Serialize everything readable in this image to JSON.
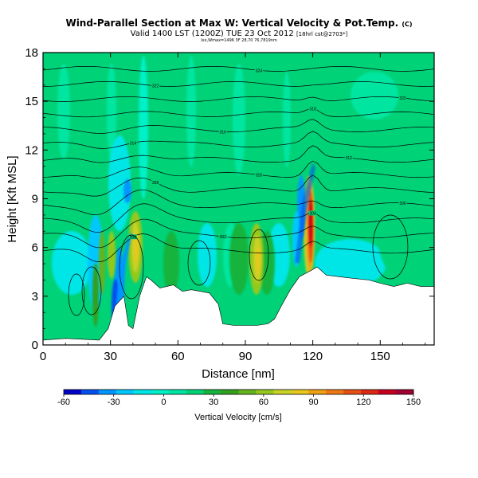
{
  "header": {
    "title": "Wind-Parallel Section at Max W: Vertical Velocity & Pot.Temp.",
    "copyright": "(C)",
    "subtitle": "Valid 1400 LST (1200Z) TUE 23 Oct 2012",
    "subtitle_note": "[18hrl cst@2703*]",
    "fineprint": "Ixx,Wmax=1496 3F 28,70 76,7819nm"
  },
  "chart_data": {
    "type": "heatmap",
    "xlabel": "Distance [nm]",
    "ylabel": "Height [Kft MSL]",
    "xlim": [
      0,
      174
    ],
    "ylim": [
      0,
      18
    ],
    "xticks": [
      0,
      30,
      60,
      90,
      120,
      150
    ],
    "yticks": [
      0,
      3,
      6,
      9,
      12,
      15,
      18
    ],
    "colorbar": {
      "label": "Vertical Velocity [cm/s]",
      "ticks": [
        -60,
        -30,
        0,
        30,
        60,
        90,
        120,
        150
      ],
      "range": [
        -60,
        150
      ],
      "colors": [
        "#0000c8",
        "#0050f0",
        "#0096ff",
        "#00c8ff",
        "#00e6e6",
        "#00f0c8",
        "#00e6a0",
        "#00d278",
        "#14b43c",
        "#32a01e",
        "#64b41e",
        "#96c81e",
        "#c8d228",
        "#e6c81e",
        "#f0a014",
        "#f07814",
        "#e65014",
        "#dc2814",
        "#c8001e",
        "#a00032"
      ]
    },
    "theta_contour_labels": [
      "300",
      "302",
      "304",
      "306",
      "308",
      "310",
      "312",
      "314",
      "316",
      "318",
      "320",
      "322",
      "324"
    ],
    "terrain_profile": [
      [
        0,
        0.3
      ],
      [
        10,
        0.4
      ],
      [
        25,
        0.3
      ],
      [
        29,
        1.0
      ],
      [
        32,
        2.4
      ],
      [
        36,
        3.0
      ],
      [
        38,
        1.2
      ],
      [
        40,
        1.0
      ],
      [
        43,
        3.0
      ],
      [
        46,
        4.2
      ],
      [
        48,
        4.0
      ],
      [
        52,
        3.5
      ],
      [
        55,
        3.6
      ],
      [
        58,
        3.7
      ],
      [
        62,
        3.3
      ],
      [
        66,
        3.4
      ],
      [
        70,
        3.3
      ],
      [
        74,
        3.2
      ],
      [
        78,
        2.5
      ],
      [
        80,
        1.3
      ],
      [
        85,
        1.2
      ],
      [
        95,
        1.2
      ],
      [
        100,
        1.3
      ],
      [
        103,
        1.6
      ],
      [
        106,
        2.4
      ],
      [
        110,
        3.4
      ],
      [
        114,
        4.2
      ],
      [
        118,
        4.5
      ],
      [
        122,
        4.8
      ],
      [
        126,
        4.3
      ],
      [
        132,
        4.2
      ],
      [
        138,
        4.1
      ],
      [
        145,
        4.0
      ],
      [
        150,
        3.8
      ],
      [
        156,
        3.6
      ],
      [
        162,
        3.8
      ],
      [
        168,
        3.6
      ],
      [
        174,
        3.6
      ]
    ]
  }
}
